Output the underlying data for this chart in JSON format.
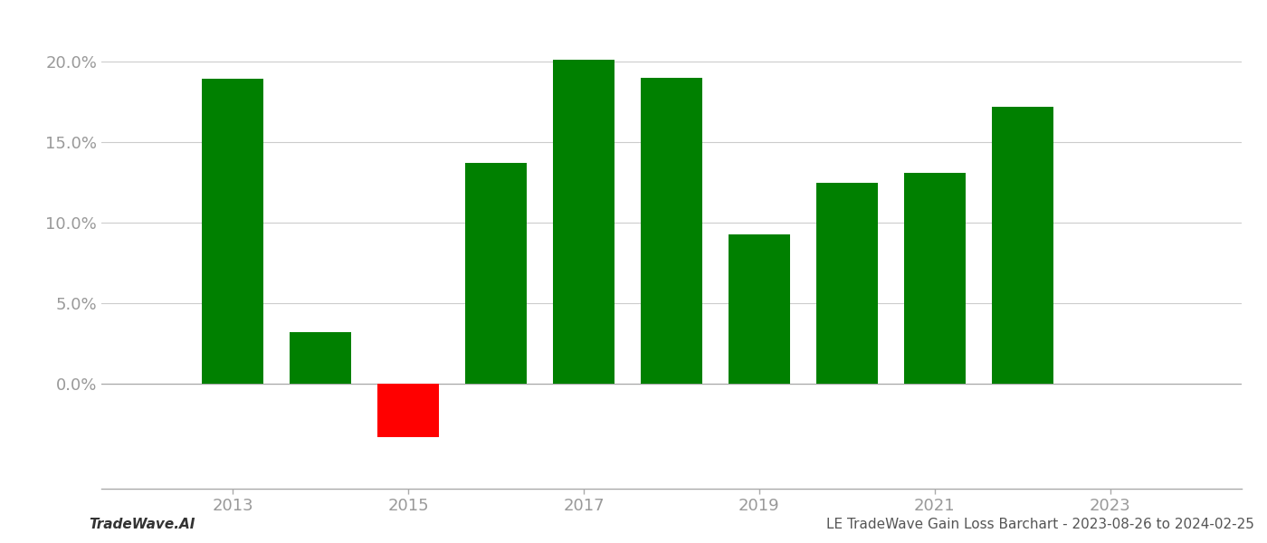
{
  "years": [
    2013,
    2014,
    2015,
    2016,
    2017,
    2018,
    2019,
    2020,
    2021,
    2022
  ],
  "values": [
    0.189,
    0.032,
    -0.033,
    0.137,
    0.201,
    0.19,
    0.093,
    0.125,
    0.131,
    0.172
  ],
  "bar_colors": [
    "#008000",
    "#008000",
    "#ff0000",
    "#008000",
    "#008000",
    "#008000",
    "#008000",
    "#008000",
    "#008000",
    "#008000"
  ],
  "xtick_labels": [
    "2013",
    "2015",
    "2017",
    "2019",
    "2021",
    "2023"
  ],
  "xtick_positions": [
    2013,
    2015,
    2017,
    2019,
    2021,
    2023
  ],
  "yticks": [
    0.0,
    0.05,
    0.1,
    0.15,
    0.2
  ],
  "ytick_labels": [
    "0.0%",
    "5.0%",
    "10.0%",
    "15.0%",
    "20.0%"
  ],
  "ylim": [
    -0.065,
    0.228
  ],
  "xlim": [
    2011.5,
    2024.5
  ],
  "background_color": "#ffffff",
  "grid_color": "#cccccc",
  "bar_width": 0.7,
  "tick_label_color": "#999999",
  "footer_left": "TradeWave.AI",
  "footer_right": "LE TradeWave Gain Loss Barchart - 2023-08-26 to 2024-02-25",
  "footer_fontsize": 11,
  "axis_fontsize": 13,
  "spine_color": "#aaaaaa",
  "zero_line_color": "#aaaaaa"
}
